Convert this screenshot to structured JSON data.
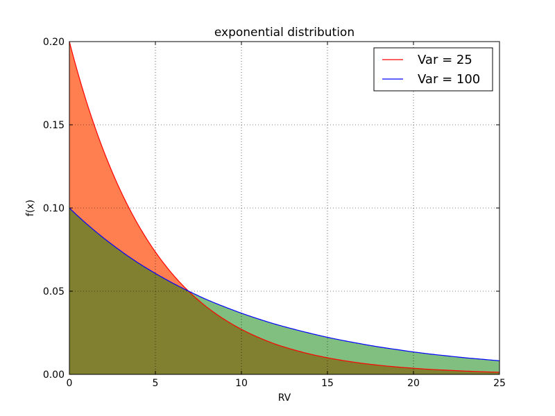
{
  "chart_data": {
    "type": "area",
    "title": "exponential distribution",
    "xlabel": "RV",
    "ylabel": "f(x)",
    "xlim": [
      0,
      25
    ],
    "ylim": [
      0,
      0.2
    ],
    "xticks": [
      0,
      5,
      10,
      15,
      20,
      25
    ],
    "yticks": [
      0.0,
      0.05,
      0.1,
      0.15,
      0.2
    ],
    "xtick_labels": [
      "0",
      "5",
      "10",
      "15",
      "20",
      "25"
    ],
    "ytick_labels": [
      "0.00",
      "0.05",
      "0.10",
      "0.15",
      "0.20"
    ],
    "grid": true,
    "legend_position": "top-right",
    "x": [
      0,
      1,
      2,
      3,
      4,
      5,
      6,
      7,
      8,
      9,
      10,
      11,
      12,
      13,
      14,
      15,
      16,
      17,
      18,
      19,
      20,
      21,
      22,
      23,
      24,
      25
    ],
    "series": [
      {
        "name": "Var = 25",
        "line_color": "#ff0000",
        "fill_color": "#ff7f50",
        "values": [
          0.2,
          0.1637,
          0.1341,
          0.1098,
          0.0899,
          0.0736,
          0.0602,
          0.0493,
          0.0404,
          0.0331,
          0.0271,
          0.0222,
          0.0181,
          0.0149,
          0.0122,
          0.01,
          0.0082,
          0.0067,
          0.0055,
          0.0045,
          0.0037,
          0.003,
          0.0025,
          0.002,
          0.0016,
          0.0013
        ]
      },
      {
        "name": "Var = 100",
        "line_color": "#0000ff",
        "fill_color": "#80bf80",
        "values": [
          0.1,
          0.0905,
          0.0819,
          0.0741,
          0.067,
          0.0607,
          0.0549,
          0.0497,
          0.0449,
          0.0407,
          0.0368,
          0.0333,
          0.0301,
          0.0273,
          0.0247,
          0.0223,
          0.0202,
          0.0183,
          0.0165,
          0.015,
          0.0135,
          0.0122,
          0.0111,
          0.01,
          0.0091,
          0.0082
        ]
      }
    ],
    "overlap_fill_color": "#808030"
  }
}
